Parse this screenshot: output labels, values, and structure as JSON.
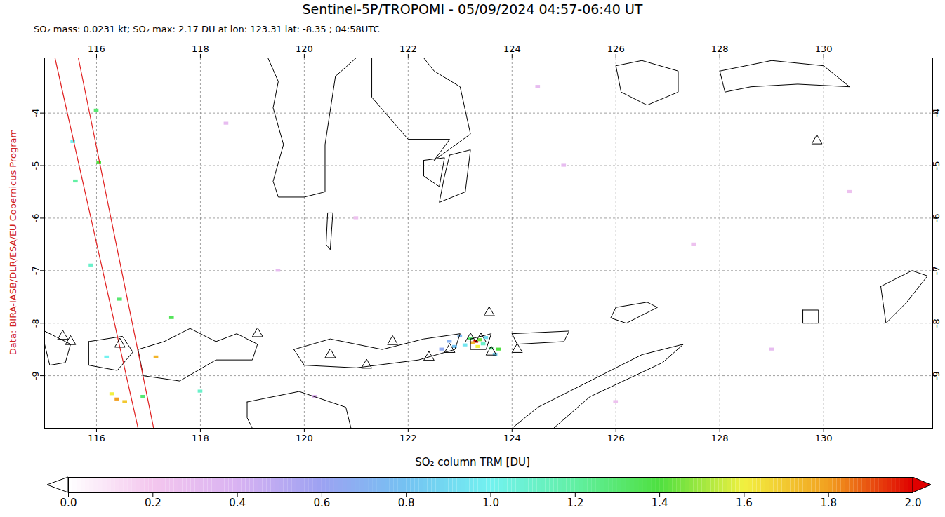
{
  "chart_data": {
    "type": "map",
    "title": "Sentinel-5P/TROPOMI - 05/09/2024 04:57-06:40 UT",
    "subtitle": "SO₂ mass: 0.0231 kt; SO₂ max: 2.17 DU at lon: 123.31 lat: -8.35 ; 04:58UTC",
    "credit": "Data: BIRA-IASB/DLR/ESA/EU Copernicus Program",
    "xlim": [
      115,
      132.1
    ],
    "ylim": [
      -10,
      -2.95
    ],
    "xticks": [
      116,
      118,
      120,
      122,
      124,
      126,
      128,
      130
    ],
    "yticks": [
      -9,
      -8,
      -7,
      -6,
      -5,
      -4
    ],
    "grid": true,
    "so2_pixels": [
      [
        123.31,
        -8.35,
        2.17
      ],
      [
        123.24,
        -8.38,
        1.75
      ],
      [
        123.38,
        -8.32,
        1.45
      ],
      [
        123.2,
        -8.3,
        1.3
      ],
      [
        123.45,
        -8.4,
        1.1
      ],
      [
        123.1,
        -8.42,
        0.95
      ],
      [
        123.5,
        -8.28,
        0.9
      ],
      [
        123.6,
        -8.48,
        1.25
      ],
      [
        123.75,
        -8.5,
        1.4
      ],
      [
        123.68,
        -8.6,
        0.85
      ],
      [
        122.9,
        -8.45,
        0.8
      ],
      [
        122.8,
        -8.35,
        0.7
      ],
      [
        123.0,
        -8.25,
        0.75
      ],
      [
        123.35,
        -8.45,
        1.6
      ],
      [
        122.65,
        -8.5,
        0.65
      ],
      [
        116.4,
        -9.45,
        1.8
      ],
      [
        116.55,
        -9.5,
        1.7
      ],
      [
        116.3,
        -9.35,
        1.6
      ],
      [
        117.15,
        -8.65,
        1.75
      ],
      [
        116.9,
        -9.4,
        1.3
      ],
      [
        116.45,
        -7.55,
        1.3
      ],
      [
        117.45,
        -7.9,
        1.35
      ],
      [
        116.05,
        -4.95,
        1.4
      ],
      [
        115.6,
        -5.3,
        1.2
      ],
      [
        116.0,
        -3.95,
        1.3
      ],
      [
        115.55,
        -4.55,
        1.0
      ],
      [
        118.0,
        -9.3,
        1.1
      ],
      [
        115.9,
        -6.9,
        1.1
      ],
      [
        116.2,
        -8.65,
        1.0
      ],
      [
        118.5,
        -4.2,
        0.3
      ],
      [
        121.0,
        -6.0,
        0.25
      ],
      [
        125.0,
        -5.0,
        0.3
      ],
      [
        127.5,
        -6.5,
        0.25
      ],
      [
        129.0,
        -8.5,
        0.3
      ],
      [
        124.5,
        -3.5,
        0.3
      ],
      [
        120.2,
        -9.4,
        0.35
      ],
      [
        130.5,
        -5.5,
        0.25
      ],
      [
        119.5,
        -7.0,
        0.3
      ],
      [
        126.0,
        -9.5,
        0.25
      ]
    ],
    "volcanoes": [
      [
        115.35,
        -8.25
      ],
      [
        115.5,
        -8.35
      ],
      [
        116.45,
        -8.4
      ],
      [
        119.1,
        -8.2
      ],
      [
        120.5,
        -8.6
      ],
      [
        121.2,
        -8.8
      ],
      [
        121.7,
        -8.35
      ],
      [
        122.4,
        -8.65
      ],
      [
        122.8,
        -8.5
      ],
      [
        123.2,
        -8.3
      ],
      [
        123.4,
        -8.3
      ],
      [
        123.6,
        -8.55
      ],
      [
        124.1,
        -8.5
      ],
      [
        123.56,
        -7.8
      ],
      [
        129.87,
        -4.53
      ]
    ],
    "swath_edges": [
      [
        [
          115.2,
          -2.95
        ],
        [
          116.8,
          -10
        ]
      ],
      [
        [
          115.65,
          -2.95
        ],
        [
          117.1,
          -10
        ]
      ]
    ],
    "coastlines": [
      [
        [
          119.3,
          -2.95
        ],
        [
          119.5,
          -3.4
        ],
        [
          119.4,
          -3.9
        ],
        [
          119.6,
          -4.6
        ],
        [
          119.4,
          -5.3
        ],
        [
          119.5,
          -5.6
        ],
        [
          120.0,
          -5.6
        ],
        [
          120.4,
          -5.5
        ],
        [
          120.4,
          -4.6
        ],
        [
          120.6,
          -3.3
        ],
        [
          121.0,
          -2.95
        ]
      ],
      [
        [
          121.3,
          -2.95
        ],
        [
          121.3,
          -3.7
        ],
        [
          122.0,
          -4.5
        ],
        [
          122.8,
          -4.5
        ],
        [
          122.5,
          -4.9
        ],
        [
          123.2,
          -4.4
        ],
        [
          123.0,
          -3.5
        ],
        [
          122.5,
          -3.2
        ],
        [
          122.3,
          -2.95
        ]
      ],
      [
        [
          122.8,
          -4.8
        ],
        [
          123.2,
          -4.7
        ],
        [
          123.1,
          -5.5
        ],
        [
          122.6,
          -5.7
        ],
        [
          122.7,
          -5.2
        ]
      ],
      [
        [
          122.3,
          -4.9
        ],
        [
          122.7,
          -4.85
        ],
        [
          122.6,
          -5.4
        ],
        [
          122.3,
          -5.2
        ]
      ],
      [
        [
          120.45,
          -5.9
        ],
        [
          120.55,
          -5.9
        ],
        [
          120.5,
          -6.6
        ],
        [
          120.42,
          -6.5
        ]
      ],
      [
        [
          114.9,
          -8.1
        ],
        [
          115.5,
          -8.4
        ],
        [
          115.4,
          -8.75
        ],
        [
          115.1,
          -8.8
        ],
        [
          115.0,
          -8.4
        ]
      ],
      [
        [
          115.85,
          -8.35
        ],
        [
          116.5,
          -8.25
        ],
        [
          116.7,
          -8.55
        ],
        [
          116.4,
          -8.9
        ],
        [
          115.85,
          -8.8
        ]
      ],
      [
        [
          116.8,
          -8.5
        ],
        [
          117.3,
          -8.35
        ],
        [
          117.8,
          -8.1
        ],
        [
          118.3,
          -8.35
        ],
        [
          118.7,
          -8.2
        ],
        [
          119.1,
          -8.4
        ],
        [
          119.0,
          -8.7
        ],
        [
          118.3,
          -8.7
        ],
        [
          117.6,
          -9.1
        ],
        [
          116.9,
          -9.0
        ]
      ],
      [
        [
          119.8,
          -8.5
        ],
        [
          120.5,
          -8.3
        ],
        [
          121.5,
          -8.5
        ],
        [
          122.3,
          -8.3
        ],
        [
          123.0,
          -8.2
        ],
        [
          122.9,
          -8.5
        ],
        [
          122.2,
          -8.7
        ],
        [
          121.0,
          -8.85
        ],
        [
          120.0,
          -8.8
        ]
      ],
      [
        [
          123.2,
          -8.3
        ],
        [
          123.6,
          -8.2
        ],
        [
          123.5,
          -8.5
        ],
        [
          123.2,
          -8.5
        ]
      ],
      [
        [
          124.0,
          -8.2
        ],
        [
          125.1,
          -8.15
        ],
        [
          125.0,
          -8.35
        ],
        [
          124.1,
          -8.4
        ]
      ],
      [
        [
          118.9,
          -9.5
        ],
        [
          119.9,
          -9.3
        ],
        [
          120.8,
          -9.6
        ],
        [
          120.9,
          -10.0
        ],
        [
          119.0,
          -10.0
        ],
        [
          118.9,
          -9.8
        ]
      ],
      [
        [
          124.0,
          -10.0
        ],
        [
          124.5,
          -9.6
        ],
        [
          125.5,
          -9.1
        ],
        [
          126.5,
          -8.6
        ],
        [
          127.3,
          -8.4
        ],
        [
          126.9,
          -8.75
        ],
        [
          125.5,
          -9.4
        ],
        [
          124.8,
          -10.0
        ]
      ],
      [
        [
          126.0,
          -7.7
        ],
        [
          126.6,
          -7.6
        ],
        [
          126.8,
          -7.7
        ],
        [
          126.2,
          -8.0
        ],
        [
          125.9,
          -7.9
        ]
      ],
      [
        [
          126.0,
          -3.1
        ],
        [
          126.5,
          -3.0
        ],
        [
          127.2,
          -3.2
        ],
        [
          127.2,
          -3.6
        ],
        [
          126.6,
          -3.85
        ],
        [
          126.1,
          -3.6
        ]
      ],
      [
        [
          128.0,
          -3.2
        ],
        [
          129.0,
          -3.0
        ],
        [
          130.0,
          -3.1
        ],
        [
          130.5,
          -3.5
        ],
        [
          129.5,
          -3.45
        ],
        [
          128.6,
          -3.5
        ],
        [
          128.1,
          -3.6
        ]
      ],
      [
        [
          131.1,
          -7.3
        ],
        [
          131.7,
          -7.0
        ],
        [
          132.0,
          -7.1
        ],
        [
          131.6,
          -7.6
        ],
        [
          131.2,
          -8.0
        ]
      ],
      [
        [
          129.6,
          -7.75
        ],
        [
          129.9,
          -7.75
        ],
        [
          129.9,
          -8.0
        ],
        [
          129.6,
          -8.0
        ]
      ]
    ],
    "colorbar": {
      "label": "SO₂ column TRM [DU]",
      "range": [
        0,
        2
      ],
      "ticks": [
        {
          "value": 0,
          "label": "0.0"
        },
        {
          "value": 0.2,
          "label": "0.2"
        },
        {
          "value": 0.4,
          "label": "0.4"
        },
        {
          "value": 0.6,
          "label": "0.6"
        },
        {
          "value": 0.8,
          "label": "0.8"
        },
        {
          "value": 1,
          "label": "1.0"
        },
        {
          "value": 1.2,
          "label": "1.2"
        },
        {
          "value": 1.4,
          "label": "1.4"
        },
        {
          "value": 1.6,
          "label": "1.6"
        },
        {
          "value": 1.8,
          "label": "1.8"
        },
        {
          "value": 2,
          "label": "2.0"
        }
      ]
    }
  }
}
